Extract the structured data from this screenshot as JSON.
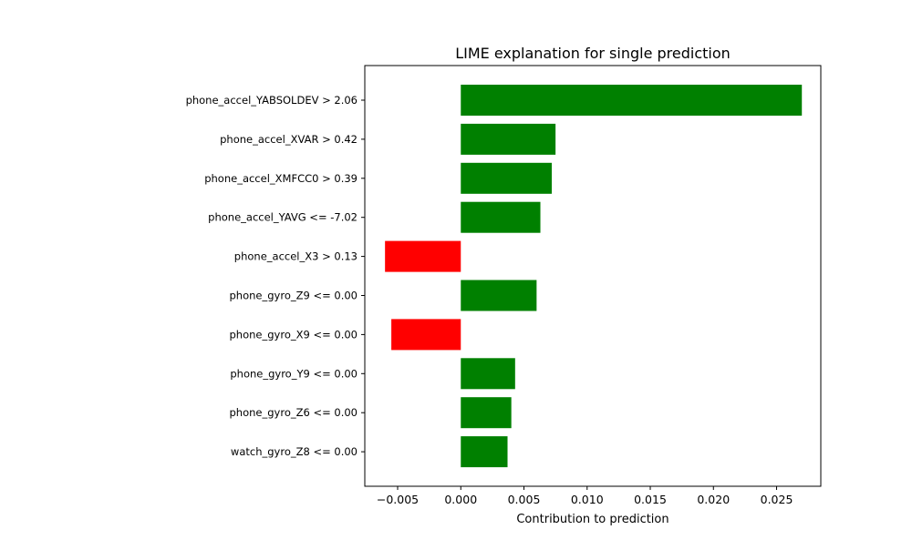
{
  "chart_data": {
    "type": "bar",
    "orientation": "horizontal",
    "title": "LIME explanation for single prediction",
    "xlabel": "Contribution to prediction",
    "ylabel": "",
    "xlim": [
      -0.0076,
      0.0285
    ],
    "xticks": [
      {
        "value": -0.005,
        "label": "−0.005"
      },
      {
        "value": 0.0,
        "label": "0.000"
      },
      {
        "value": 0.005,
        "label": "0.005"
      },
      {
        "value": 0.01,
        "label": "0.010"
      },
      {
        "value": 0.015,
        "label": "0.015"
      },
      {
        "value": 0.02,
        "label": "0.020"
      },
      {
        "value": 0.025,
        "label": "0.025"
      }
    ],
    "grid": false,
    "legend": "none",
    "colors": {
      "positive": "#008000",
      "negative": "#ff0000"
    },
    "categories": [
      "phone_accel_YABSOLDEV > 2.06",
      "phone_accel_XVAR > 0.42",
      "phone_accel_XMFCC0 > 0.39",
      "phone_accel_YAVG <= -7.02",
      "phone_accel_X3 > 0.13",
      "phone_gyro_Z9 <= 0.00",
      "phone_gyro_X9 <= 0.00",
      "phone_gyro_Y9 <= 0.00",
      "phone_gyro_Z6 <= 0.00",
      "watch_gyro_Z8 <= 0.00"
    ],
    "values": [
      0.027,
      0.0075,
      0.0072,
      0.0063,
      -0.006,
      0.006,
      -0.0055,
      0.0043,
      0.004,
      0.0037
    ]
  }
}
